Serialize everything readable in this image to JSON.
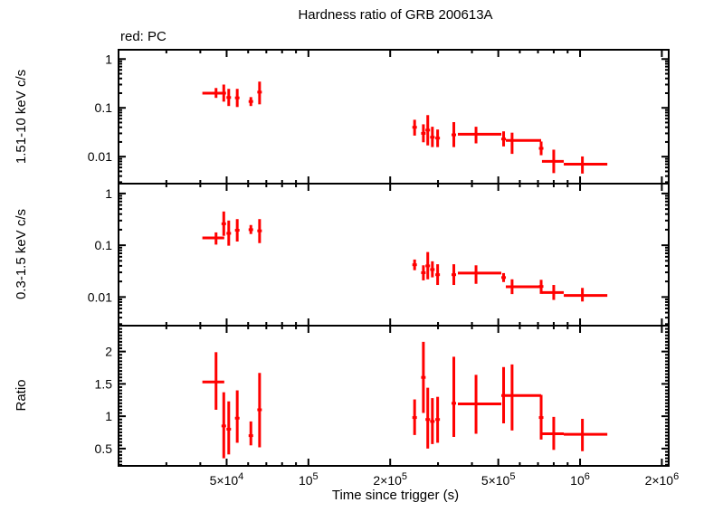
{
  "title": "Hardness ratio of GRB 200613A",
  "legend": "red: PC",
  "colors": {
    "data": "#ff0000",
    "axis": "#000000",
    "background": "#ffffff"
  },
  "x_axis": {
    "label": "Time since trigger (s)",
    "scale": "log",
    "min": 20000,
    "max": 2120000,
    "ticks": [
      {
        "v": 30000
      },
      {
        "v": 40000
      },
      {
        "v": 50000,
        "base": "5×10",
        "exp": "4"
      },
      {
        "v": 60000
      },
      {
        "v": 70000
      },
      {
        "v": 80000
      },
      {
        "v": 90000
      },
      {
        "v": 100000,
        "base": "10",
        "exp": "5"
      },
      {
        "v": 200000,
        "base": "2×10",
        "exp": "5"
      },
      {
        "v": 300000
      },
      {
        "v": 400000
      },
      {
        "v": 500000,
        "base": "5×10",
        "exp": "5"
      },
      {
        "v": 600000
      },
      {
        "v": 700000
      },
      {
        "v": 800000
      },
      {
        "v": 900000
      },
      {
        "v": 1000000,
        "base": "10",
        "exp": "6"
      },
      {
        "v": 2000000,
        "base": "2×10",
        "exp": "6"
      }
    ]
  },
  "chart_data": [
    {
      "type": "scatter",
      "name": "hard-band",
      "ylabel": "1.51-10 keV c/s",
      "yscale": "log",
      "ylim": [
        0.0028,
        1.55
      ],
      "yticks_major": [
        {
          "v": 1,
          "label": "1"
        },
        {
          "v": 0.1,
          "label": "0.1"
        },
        {
          "v": 0.01,
          "label": "0.01"
        }
      ],
      "yticks_minor": [
        0.003,
        0.004,
        0.005,
        0.006,
        0.007,
        0.008,
        0.009,
        0.02,
        0.03,
        0.04,
        0.05,
        0.06,
        0.07,
        0.08,
        0.09,
        0.2,
        0.3,
        0.4,
        0.5,
        0.6,
        0.7,
        0.8,
        0.9
      ],
      "columns": [
        "t",
        "t_lo",
        "t_hi",
        "y",
        "y_lo",
        "y_hi"
      ],
      "points": [
        [
          45700,
          40700,
          49000,
          0.2,
          0.16,
          0.255
        ],
        [
          48800,
          null,
          null,
          0.2,
          0.134,
          0.3
        ],
        [
          50900,
          null,
          null,
          0.163,
          0.109,
          0.245
        ],
        [
          54700,
          null,
          null,
          0.16,
          0.104,
          0.245
        ],
        [
          61400,
          null,
          null,
          0.135,
          0.109,
          0.166
        ],
        [
          66100,
          null,
          null,
          0.21,
          0.118,
          0.345
        ],
        [
          246000,
          null,
          null,
          0.04,
          0.027,
          0.057
        ],
        [
          265000,
          null,
          null,
          0.03,
          0.0197,
          0.046
        ],
        [
          275000,
          null,
          null,
          0.035,
          0.017,
          0.071
        ],
        [
          286000,
          null,
          null,
          0.025,
          0.0157,
          0.041
        ],
        [
          299000,
          null,
          null,
          0.024,
          0.0157,
          0.036
        ],
        [
          343000,
          null,
          null,
          0.028,
          0.0157,
          0.051
        ],
        [
          414000,
          355000,
          513000,
          0.0288,
          0.0187,
          0.041
        ],
        [
          523000,
          null,
          null,
          0.023,
          0.0162,
          0.033
        ],
        [
          562000,
          533000,
          719000,
          0.0215,
          0.0114,
          0.031
        ],
        [
          719000,
          null,
          null,
          0.0148,
          0.0107,
          0.0204
        ],
        [
          800000,
          724000,
          871000,
          0.008,
          0.0046,
          0.0139
        ],
        [
          1020000,
          871000,
          1260000,
          0.007,
          0.0045,
          0.0101
        ]
      ]
    },
    {
      "type": "scatter",
      "name": "soft-band",
      "ylabel": "0.3-1.5 keV c/s",
      "yscale": "log",
      "ylim": [
        0.0028,
        1.55
      ],
      "yticks_major": [
        {
          "v": 1,
          "label": "1"
        },
        {
          "v": 0.1,
          "label": "0.1"
        },
        {
          "v": 0.01,
          "label": "0.01"
        }
      ],
      "yticks_minor": [
        0.003,
        0.004,
        0.005,
        0.006,
        0.007,
        0.008,
        0.009,
        0.02,
        0.03,
        0.04,
        0.05,
        0.06,
        0.07,
        0.08,
        0.09,
        0.2,
        0.3,
        0.4,
        0.5,
        0.6,
        0.7,
        0.8,
        0.9
      ],
      "columns": [
        "t",
        "t_lo",
        "t_hi",
        "y",
        "y_lo",
        "y_hi"
      ],
      "points": [
        [
          45700,
          40700,
          49000,
          0.139,
          0.103,
          0.177
        ],
        [
          48800,
          null,
          null,
          0.26,
          0.152,
          0.449
        ],
        [
          50900,
          null,
          null,
          0.17,
          0.098,
          0.3
        ],
        [
          54700,
          null,
          null,
          0.195,
          0.118,
          0.32
        ],
        [
          61400,
          null,
          null,
          0.2,
          0.165,
          0.246
        ],
        [
          66100,
          null,
          null,
          0.19,
          0.11,
          0.32
        ],
        [
          246000,
          null,
          null,
          0.042,
          0.033,
          0.053
        ],
        [
          265000,
          null,
          null,
          0.0295,
          0.021,
          0.041
        ],
        [
          275000,
          null,
          null,
          0.04,
          0.022,
          0.074
        ],
        [
          286000,
          null,
          null,
          0.034,
          0.024,
          0.049
        ],
        [
          299000,
          null,
          null,
          0.027,
          0.0171,
          0.043
        ],
        [
          343000,
          null,
          null,
          0.027,
          0.0171,
          0.043
        ],
        [
          414000,
          355000,
          513000,
          0.029,
          0.018,
          0.041
        ],
        [
          523000,
          null,
          null,
          0.0238,
          0.0195,
          0.029
        ],
        [
          562000,
          533000,
          719000,
          0.0158,
          0.0114,
          0.022
        ],
        [
          719000,
          null,
          null,
          0.016,
          0.0115,
          0.0215
        ],
        [
          800000,
          724000,
          871000,
          0.0122,
          0.0088,
          0.0171
        ],
        [
          1020000,
          871000,
          1260000,
          0.0107,
          0.0082,
          0.015
        ]
      ]
    },
    {
      "type": "scatter",
      "name": "ratio",
      "ylabel": "Ratio",
      "yscale": "linear",
      "ylim": [
        0.233,
        2.4
      ],
      "yticks_major": [
        {
          "v": 0.5,
          "label": "0.5"
        },
        {
          "v": 1,
          "label": "1"
        },
        {
          "v": 1.5,
          "label": "1.5"
        },
        {
          "v": 2,
          "label": "2"
        }
      ],
      "yticks_minor_step": 0.05,
      "columns": [
        "t",
        "t_lo",
        "t_hi",
        "y",
        "y_lo",
        "y_hi"
      ],
      "points": [
        [
          45700,
          40700,
          49000,
          1.53,
          1.1,
          1.99
        ],
        [
          48800,
          null,
          null,
          0.85,
          0.35,
          1.37
        ],
        [
          50900,
          null,
          null,
          0.8,
          0.41,
          1.23
        ],
        [
          54700,
          null,
          null,
          0.97,
          0.59,
          1.4
        ],
        [
          61400,
          null,
          null,
          0.7,
          0.55,
          0.92
        ],
        [
          66100,
          null,
          null,
          1.1,
          0.52,
          1.67
        ],
        [
          246000,
          null,
          null,
          0.98,
          0.71,
          1.26
        ],
        [
          265000,
          null,
          null,
          1.6,
          1.05,
          2.15
        ],
        [
          275000,
          null,
          null,
          0.95,
          0.5,
          1.44
        ],
        [
          286000,
          null,
          null,
          0.92,
          0.57,
          1.28
        ],
        [
          299000,
          null,
          null,
          0.95,
          0.59,
          1.3
        ],
        [
          343000,
          null,
          null,
          1.2,
          0.68,
          1.92
        ],
        [
          414000,
          355000,
          513000,
          1.19,
          0.73,
          1.64
        ],
        [
          523000,
          null,
          null,
          1.32,
          0.89,
          1.76
        ],
        [
          562000,
          533000,
          719000,
          1.32,
          0.78,
          1.8
        ],
        [
          719000,
          null,
          null,
          0.98,
          0.64,
          1.33
        ],
        [
          800000,
          724000,
          871000,
          0.73,
          0.48,
          0.99
        ],
        [
          1020000,
          871000,
          1260000,
          0.72,
          0.46,
          0.96
        ]
      ]
    }
  ]
}
